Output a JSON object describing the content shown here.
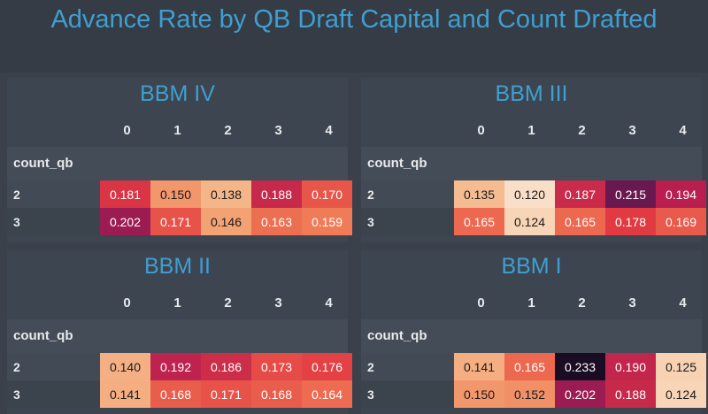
{
  "title": "Advance Rate by QB Draft Capital and Count Drafted",
  "chart_data": {
    "type": "heatmap",
    "title": "Advance Rate by QB Draft Capital and Count Drafted",
    "panels": [
      {
        "title": "BBM IV",
        "columns": [
          "0",
          "1",
          "2",
          "3",
          "4"
        ],
        "index_name": "count_qb",
        "rows": [
          {
            "label": "2",
            "values": [
              0.181,
              0.15,
              0.138,
              0.188,
              0.17
            ],
            "display": [
              "0.181",
              "0.150",
              "0.138",
              "0.188",
              "0.170"
            ]
          },
          {
            "label": "3",
            "values": [
              0.202,
              0.171,
              0.146,
              0.163,
              0.159
            ],
            "display": [
              "0.202",
              "0.171",
              "0.146",
              "0.163",
              "0.159"
            ]
          }
        ]
      },
      {
        "title": "BBM III",
        "columns": [
          "0",
          "1",
          "2",
          "3",
          "4"
        ],
        "index_name": "count_qb",
        "rows": [
          {
            "label": "2",
            "values": [
              0.135,
              0.12,
              0.187,
              0.215,
              0.194
            ],
            "display": [
              "0.135",
              "0.120",
              "0.187",
              "0.215",
              "0.194"
            ]
          },
          {
            "label": "3",
            "values": [
              0.165,
              0.124,
              0.165,
              0.178,
              0.169
            ],
            "display": [
              "0.165",
              "0.124",
              "0.165",
              "0.178",
              "0.169"
            ]
          }
        ]
      },
      {
        "title": "BBM II",
        "columns": [
          "0",
          "1",
          "2",
          "3",
          "4"
        ],
        "index_name": "count_qb",
        "rows": [
          {
            "label": "2",
            "values": [
              0.14,
              0.192,
              0.186,
              0.173,
              0.176
            ],
            "display": [
              "0.140",
              "0.192",
              "0.186",
              "0.173",
              "0.176"
            ]
          },
          {
            "label": "3",
            "values": [
              0.141,
              0.168,
              0.171,
              0.168,
              0.164
            ],
            "display": [
              "0.141",
              "0.168",
              "0.171",
              "0.168",
              "0.164"
            ]
          }
        ]
      },
      {
        "title": "BBM I",
        "columns": [
          "0",
          "1",
          "2",
          "3",
          "4"
        ],
        "index_name": "count_qb",
        "rows": [
          {
            "label": "2",
            "values": [
              0.141,
              0.165,
              0.233,
              0.19,
              0.125
            ],
            "display": [
              "0.141",
              "0.165",
              "0.233",
              "0.190",
              "0.125"
            ]
          },
          {
            "label": "3",
            "values": [
              0.15,
              0.152,
              0.202,
              0.188,
              0.124
            ],
            "display": [
              "0.150",
              "0.152",
              "0.202",
              "0.188",
              "0.124"
            ]
          }
        ]
      }
    ],
    "colormap": "rocket_r",
    "colors": {
      "title": "#3f9fd0",
      "text_light": "#ffffff",
      "text_dark": "#1a1a1a"
    }
  }
}
